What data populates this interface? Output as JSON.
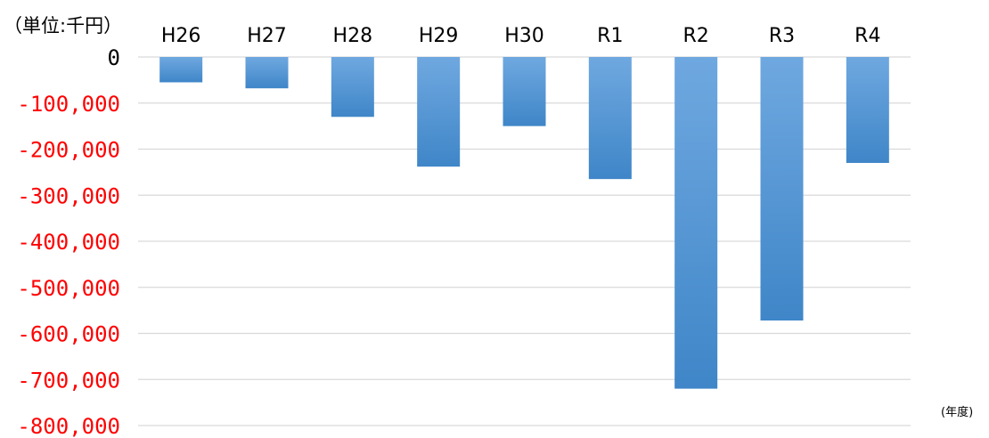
{
  "chart_data": {
    "type": "bar",
    "unit_label": "（単位:千円）",
    "x_unit_label": "(年度)",
    "categories": [
      "H26",
      "H27",
      "H28",
      "H29",
      "H30",
      "R1",
      "R2",
      "R3",
      "R4"
    ],
    "values": [
      -55000,
      -68000,
      -130000,
      -238000,
      -150000,
      -265000,
      -720000,
      -572000,
      -230000
    ],
    "ylim": [
      -800000,
      0
    ],
    "yticks": [
      {
        "value": 0,
        "label": "0"
      },
      {
        "value": -100000,
        "label": "-100,000"
      },
      {
        "value": -200000,
        "label": "-200,000"
      },
      {
        "value": -300000,
        "label": "-300,000"
      },
      {
        "value": -400000,
        "label": "-400,000"
      },
      {
        "value": -500000,
        "label": "-500,000"
      },
      {
        "value": -600000,
        "label": "-600,000"
      },
      {
        "value": -700000,
        "label": "-700,000"
      },
      {
        "value": -800000,
        "label": "-800,000"
      }
    ],
    "category_axis_position": "top",
    "grid": true,
    "legend": "none",
    "colors": {
      "bar_top": "#6fa8e0",
      "bar_bottom": "#3f86c8",
      "zero_tick": "#000000",
      "negative_tick": "#ff0000",
      "grid": "#d9d9d9"
    }
  }
}
